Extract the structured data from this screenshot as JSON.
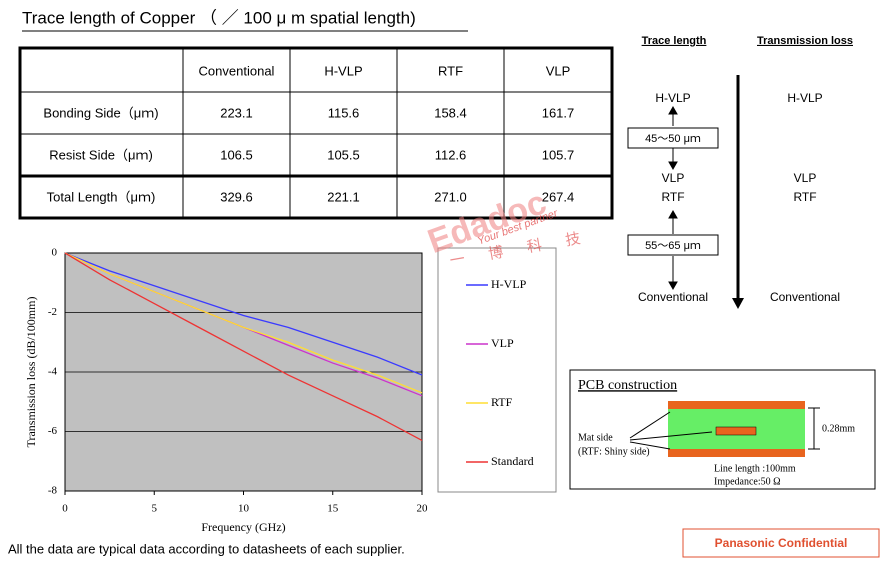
{
  "title": "Trace length of Copper （ ／ 100 μ m spatial length)",
  "table": {
    "columns": [
      "Conventional",
      "H-VLP",
      "RTF",
      "VLP"
    ],
    "rows": [
      {
        "label": "Bonding Side（μｍ)",
        "cells": [
          "223.1",
          "115.6",
          "158.4",
          "161.7"
        ]
      },
      {
        "label": "Resist Side（μｍ)",
        "cells": [
          "106.5",
          "105.5",
          "112.6",
          "105.7"
        ]
      },
      {
        "label": "Total Length（μｍ)",
        "cells": [
          "329.6",
          "221.1",
          "271.0",
          "267.4"
        ]
      }
    ]
  },
  "chart_data": {
    "type": "line",
    "xlabel": "Frequency (GHz)",
    "ylabel": "Transmission loss (dB/100mm)",
    "x": [
      0,
      2.5,
      5,
      7.5,
      10,
      12.5,
      15,
      17.5,
      20
    ],
    "series": [
      {
        "name": "H-VLP",
        "color": "#3a3aff",
        "values": [
          0,
          -0.6,
          -1.1,
          -1.6,
          -2.1,
          -2.5,
          -3.0,
          -3.5,
          -4.1
        ]
      },
      {
        "name": "VLP",
        "color": "#cc33cc",
        "values": [
          0,
          -0.7,
          -1.3,
          -1.9,
          -2.5,
          -3.1,
          -3.7,
          -4.2,
          -4.8
        ]
      },
      {
        "name": "RTF",
        "color": "#ffdd33",
        "values": [
          0,
          -0.7,
          -1.3,
          -1.9,
          -2.5,
          -3.0,
          -3.6,
          -4.1,
          -4.7
        ]
      },
      {
        "name": "Standard",
        "color": "#ee3333",
        "values": [
          0,
          -0.9,
          -1.7,
          -2.5,
          -3.3,
          -4.1,
          -4.8,
          -5.5,
          -6.3
        ]
      }
    ],
    "xlim": [
      0,
      20
    ],
    "ylim": [
      -8,
      0
    ],
    "xticks": [
      0,
      5,
      10,
      15,
      20
    ],
    "yticks": [
      0,
      -2,
      -4,
      -6,
      -8
    ],
    "grid": true
  },
  "diagram": {
    "trace_header": "Trace length",
    "loss_header": "Transmission loss",
    "trace_labels": [
      "H-VLP",
      "VLP",
      "RTF",
      "Conventional"
    ],
    "gap_top": "45～50 μｍ",
    "gap_bottom": "55～65 μｍ",
    "loss_labels": [
      "H-VLP",
      "VLP",
      "RTF",
      "Conventional"
    ]
  },
  "pcb": {
    "title": "PCB construction",
    "mat_side": "Mat side",
    "mat_note": "(RTF: Shiny side)",
    "thickness": "0.28mm",
    "line_length": "Line length :100mm",
    "impedance": "Impedance:50 Ω"
  },
  "watermark": {
    "brand": "Edadoc",
    "slogan": "Your best partner",
    "chinese": "一 博 科 技"
  },
  "footnote": "All the data are typical data according to datasheets of each supplier.",
  "confidential": "Panasonic Confidential"
}
